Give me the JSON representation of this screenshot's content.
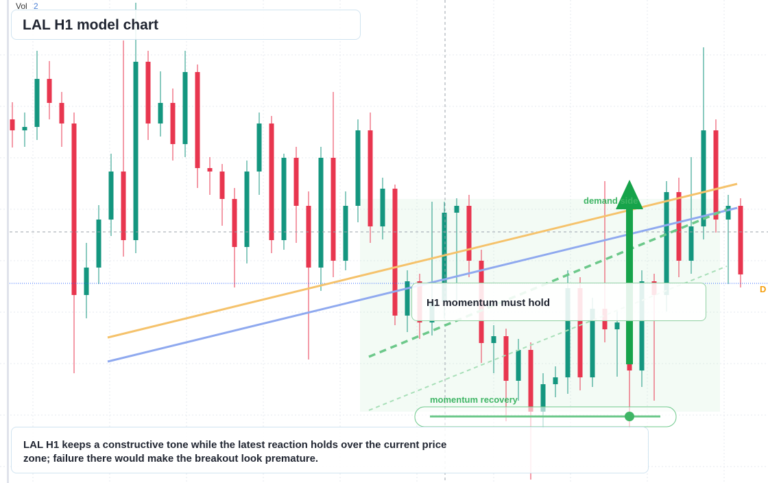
{
  "chart_data": {
    "type": "candlestick",
    "title": "LAL H1 model chart",
    "volume_label": "Vol",
    "volume": 2,
    "annotations": {
      "demand": "demand side",
      "momentum": "H1 momentum must hold",
      "recovery": "momentum recovery",
      "marker": "D"
    },
    "description": "LAL H1 keeps a constructive tone while the latest reaction holds over the current price zone; failure there would make the breakout look premature.",
    "up_color": "#14967f",
    "down_color": "#e8364f",
    "ylim": [
      0,
      70.4
    ],
    "open": [
      53.0,
      51.4,
      51.9,
      58.9,
      55.4,
      52.4,
      27.4,
      31.4,
      38.4,
      45.4,
      35.4,
      61.4,
      52.4,
      55.4,
      49.4,
      59.9,
      45.9,
      45.4,
      41.4,
      34.4,
      45.4,
      52.4,
      35.4,
      47.4,
      40.4,
      31.4,
      47.4,
      32.4,
      40.4,
      51.4,
      37.4,
      42.9,
      24.4,
      29.4,
      23.4,
      26.4,
      39.4,
      40.4,
      32.4,
      20.4,
      21.4,
      14.9,
      19.4,
      10.4,
      14.4,
      15.4,
      28.4,
      15.4,
      25.4,
      22.4,
      23.4,
      16.4,
      29.4,
      27.4,
      42.4,
      32.4,
      37.4,
      51.4,
      38.4,
      40.4
    ],
    "high": [
      55.5,
      54.0,
      63.0,
      61.5,
      57.0,
      54.0,
      35.0,
      40.5,
      48.0,
      64.5,
      70.0,
      63.0,
      60.0,
      57.5,
      63.0,
      61.0,
      47.5,
      46.5,
      43.0,
      47.0,
      54.0,
      53.5,
      48.0,
      49.0,
      42.5,
      49.0,
      57.0,
      42.5,
      53.0,
      54.0,
      44.5,
      43.5,
      31.0,
      30.5,
      41.0,
      41.0,
      41.5,
      42.0,
      34.0,
      23.0,
      22.5,
      21.0,
      20.5,
      16.0,
      17.0,
      31.0,
      30.0,
      27.0,
      44.0,
      25.0,
      25.5,
      31.0,
      30.5,
      44.0,
      44.5,
      47.5,
      63.5,
      53.0,
      42.0,
      41.5
    ],
    "low": [
      48.9,
      49.0,
      50.0,
      53.0,
      49.0,
      16.0,
      24.0,
      29.0,
      36.0,
      33.0,
      33.5,
      50.0,
      50.5,
      47.0,
      47.5,
      43.0,
      42.0,
      37.5,
      28.5,
      32.0,
      42.0,
      33.5,
      34.0,
      35.0,
      18.0,
      28.0,
      30.0,
      31.0,
      38.0,
      35.0,
      35.5,
      23.0,
      22.0,
      21.0,
      21.5,
      24.0,
      26.0,
      30.0,
      17.5,
      16.0,
      9.0,
      12.0,
      0.5,
      8.0,
      12.5,
      13.0,
      13.5,
      14.0,
      20.5,
      15.5,
      8.0,
      14.0,
      12.0,
      25.0,
      30.0,
      30.5,
      35.5,
      36.5,
      29.0,
      28.5
    ],
    "close": [
      51.4,
      51.9,
      58.9,
      55.4,
      52.4,
      27.4,
      31.4,
      38.4,
      45.4,
      35.4,
      61.4,
      52.4,
      55.4,
      49.4,
      59.9,
      45.9,
      45.4,
      41.4,
      34.4,
      45.4,
      52.4,
      35.4,
      47.4,
      40.4,
      31.4,
      47.4,
      32.4,
      40.4,
      51.4,
      37.4,
      42.9,
      24.4,
      29.4,
      23.4,
      26.4,
      39.4,
      40.4,
      32.4,
      20.4,
      21.4,
      14.9,
      19.4,
      10.4,
      14.4,
      15.4,
      28.4,
      15.4,
      25.4,
      22.4,
      23.4,
      16.4,
      29.4,
      27.4,
      42.4,
      32.4,
      37.4,
      51.4,
      38.4,
      40.4,
      30.4
    ]
  }
}
